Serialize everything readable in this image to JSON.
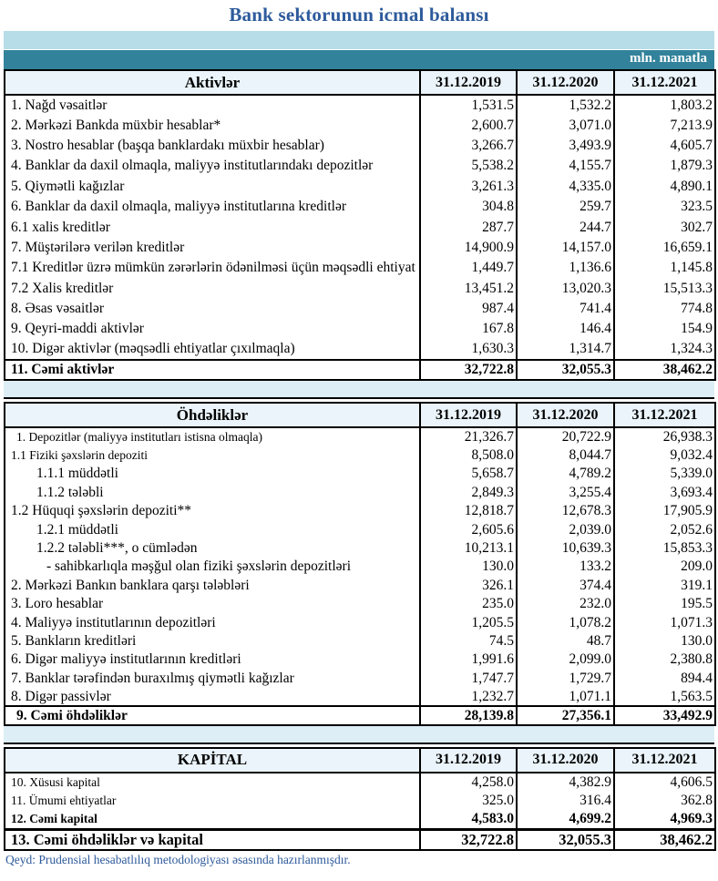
{
  "title": "Bank sektorunun icmal balansı",
  "unit_label": "mln. manatla",
  "note": "Qeyd: Prudensial hesabatlılıq metodologiyası əsasında hazırlanmışdır.",
  "columns": [
    "31.12.2019",
    "31.12.2020",
    "31.12.2021"
  ],
  "colors": {
    "title": "#2d5a9b",
    "band_light": "#b7dde8",
    "band_teal": "#32829b",
    "header_bg": "#eaf4fa",
    "separator_bg": "#ddeef6",
    "note": "#2d5a9b"
  },
  "sections": [
    {
      "header": "Aktivlər",
      "rows": [
        {
          "label": "1. Nağd vəsaitlər",
          "values": [
            "1,531.5",
            "1,532.2",
            "1,803.2"
          ]
        },
        {
          "label": "2. Mərkəzi Bankda müxbir hesablar*",
          "values": [
            "2,600.7",
            "3,071.0",
            "7,213.9"
          ]
        },
        {
          "label": "3. Nostro hesablar (başqa banklardakı müxbir hesablar)",
          "values": [
            "3,266.7",
            "3,493.9",
            "4,605.7"
          ]
        },
        {
          "label": "4. Banklar da daxil olmaqla, maliyyə institutlarındakı depozitlər",
          "values": [
            "5,538.2",
            "4,155.7",
            "1,879.3"
          ]
        },
        {
          "label": "5. Qiymətli kağızlar",
          "values": [
            "3,261.3",
            "4,335.0",
            "4,890.1"
          ]
        },
        {
          "label": "6. Banklar da daxil olmaqla, maliyyə institutlarına kreditlər",
          "values": [
            "304.8",
            "259.7",
            "323.5"
          ]
        },
        {
          "label": "6.1 xalis kreditlər",
          "values": [
            "287.7",
            "244.7",
            "302.7"
          ]
        },
        {
          "label": "7. Müştərilərə verilən kreditlər",
          "values": [
            "14,900.9",
            "14,157.0",
            "16,659.1"
          ]
        },
        {
          "label": "7.1 Kreditlər üzrə mümkün zərərlərin ödənilməsi üçün məqsədli ehtiyat",
          "values": [
            "1,449.7",
            "1,136.6",
            "1,145.8"
          ]
        },
        {
          "label": "7.2 Xalis kreditlər",
          "values": [
            "13,451.2",
            "13,020.3",
            "15,513.3"
          ]
        },
        {
          "label": "8.  Əsas vəsaitlər",
          "values": [
            "987.4",
            "741.4",
            "774.8"
          ]
        },
        {
          "label": "9. Qeyri-maddi aktivlər",
          "values": [
            "167.8",
            "146.4",
            "154.9"
          ]
        },
        {
          "label": "10. Digər aktivlər (məqsədli ehtiyatlar çıxılmaqla)",
          "values": [
            "1,630.3",
            "1,314.7",
            "1,324.3"
          ]
        },
        {
          "label": "11. Cəmi aktivlər",
          "values": [
            "32,722.8",
            "32,055.3",
            "38,462.2"
          ],
          "style": "total"
        }
      ]
    },
    {
      "header": "Öhdəliklər",
      "rows": [
        {
          "label": "1. Depozitlər (maliyyə institutları istisna olmaqla)",
          "values": [
            "21,326.7",
            "20,722.9",
            "26,938.3"
          ],
          "small": true,
          "indent": 1
        },
        {
          "label": "1.1 Fiziki şəxslərin depoziti",
          "values": [
            "8,508.0",
            "8,044.7",
            "9,032.4"
          ],
          "small": true
        },
        {
          "label": "1.1.1 müddətli",
          "values": [
            "5,658.7",
            "4,789.2",
            "5,339.0"
          ],
          "indent": 2
        },
        {
          "label": "1.1.2 tələbli",
          "values": [
            "2,849.3",
            "3,255.4",
            "3,693.4"
          ],
          "indent": 2
        },
        {
          "label": "1.2 Hüquqi şəxslərin depoziti**",
          "values": [
            "12,818.7",
            "12,678.3",
            "17,905.9"
          ]
        },
        {
          "label": "1.2.1 müddətli",
          "values": [
            "2,605.6",
            "2,039.0",
            "2,052.6"
          ],
          "indent": 2
        },
        {
          "label": "1.2.2 tələbli***, o cümlədən",
          "values": [
            "10,213.1",
            "10,639.3",
            "15,853.3"
          ],
          "indent": 2
        },
        {
          "label": "- sahibkarlıqla məşğul olan fiziki şəxslərin depozitləri",
          "values": [
            "130.0",
            "133.2",
            "209.0"
          ],
          "indent": 3
        },
        {
          "label": "2. Mərkəzi Bankın banklara qarşı tələbləri",
          "values": [
            "326.1",
            "374.4",
            "319.1"
          ]
        },
        {
          "label": "3. Loro hesablar",
          "values": [
            "235.0",
            "232.0",
            "195.5"
          ]
        },
        {
          "label": "4. Maliyyə institutlarının  depozitləri",
          "values": [
            "1,205.5",
            "1,078.2",
            "1,071.3"
          ]
        },
        {
          "label": "5. Bankların kreditləri",
          "values": [
            "74.5",
            "48.7",
            "130.0"
          ]
        },
        {
          "label": "6. Digər maliyyə institutlarının kreditləri",
          "values": [
            "1,991.6",
            "2,099.0",
            "2,380.8"
          ]
        },
        {
          "label": "7. Banklar tərəfindən buraxılmış qiymətli kağızlar",
          "values": [
            "1,747.7",
            "1,729.7",
            "894.4"
          ]
        },
        {
          "label": "8. Digər passivlər",
          "values": [
            "1,232.7",
            "1,071.1",
            "1,563.5"
          ]
        },
        {
          "label": "9. Cəmi öhdəliklər",
          "values": [
            "28,139.8",
            "27,356.1",
            "33,492.9"
          ],
          "style": "total",
          "indent": 1
        }
      ]
    },
    {
      "header": "KAPİTAL",
      "rows": [
        {
          "label": "10. Xüsusi kapital",
          "values": [
            "4,258.0",
            "4,382.9",
            "4,606.5"
          ],
          "small": true
        },
        {
          "label": "11. Ümumi ehtiyatlar",
          "values": [
            "325.0",
            "316.4",
            "362.8"
          ],
          "small": true
        },
        {
          "label": "12. Cəmi kapital",
          "values": [
            "4,583.0",
            "4,699.2",
            "4,969.3"
          ],
          "small": true,
          "style": "subtotal"
        },
        {
          "label": "13. Cəmi öhdəliklər və kapital",
          "values": [
            "32,722.8",
            "32,055.3",
            "38,462.2"
          ],
          "style": "grand"
        }
      ]
    }
  ]
}
